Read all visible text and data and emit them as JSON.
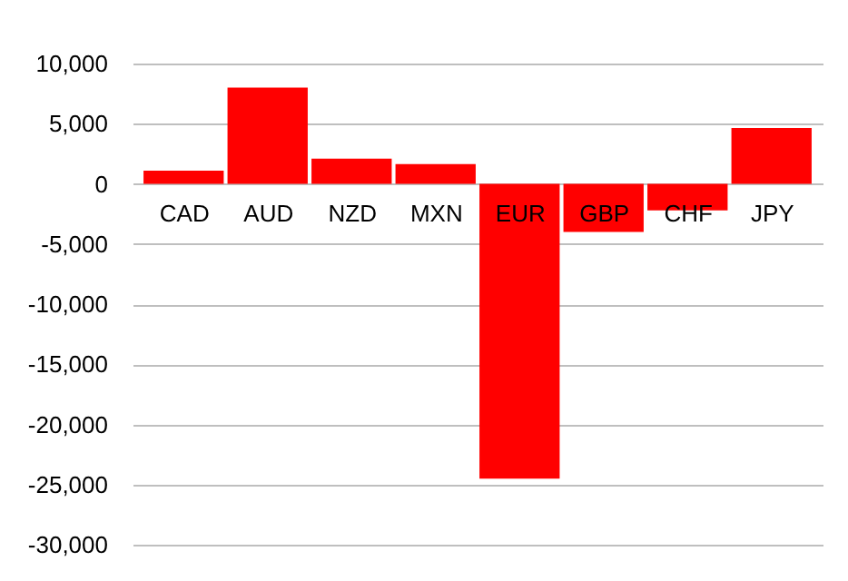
{
  "chart_data": {
    "type": "bar",
    "categories": [
      "CAD",
      "AUD",
      "NZD",
      "MXN",
      "EUR",
      "GBP",
      "CHF",
      "JPY"
    ],
    "values": [
      1100,
      8000,
      2100,
      1650,
      -24500,
      -4000,
      -2200,
      4650
    ],
    "color": "#ff0000",
    "ylim": [
      -30000,
      10000
    ],
    "yticks": [
      {
        "value": -30000,
        "label": "-30,000"
      },
      {
        "value": -25000,
        "label": "-25,000"
      },
      {
        "value": -20000,
        "label": "-20,000"
      },
      {
        "value": -15000,
        "label": "-15,000"
      },
      {
        "value": -10000,
        "label": "-10,000"
      },
      {
        "value": -5000,
        "label": "-5,000"
      },
      0,
      {
        "value": 5000,
        "label": "5,000"
      },
      {
        "value": 10000,
        "label": "10,000"
      }
    ],
    "grid": "y"
  }
}
